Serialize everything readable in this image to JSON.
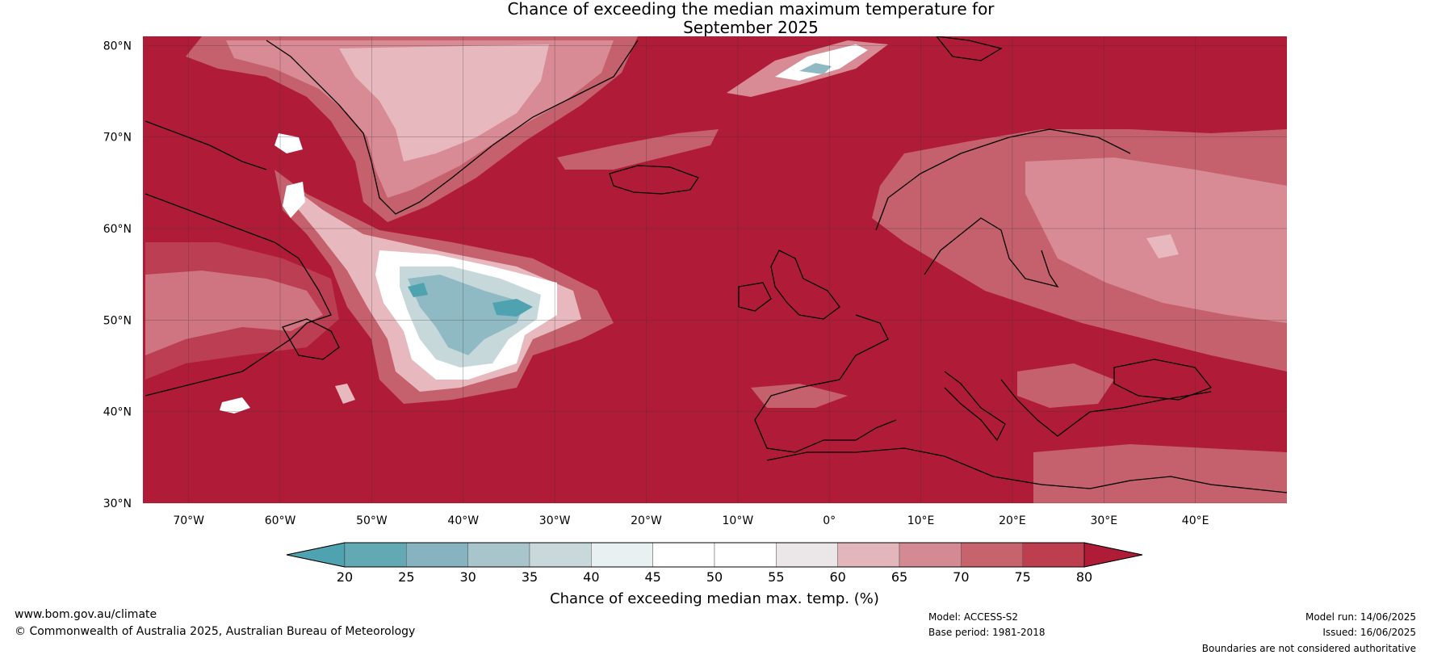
{
  "title": {
    "line1": "Chance of exceeding the median maximum temperature for",
    "line2": "September 2025"
  },
  "map": {
    "lat_labels": [
      "80°N",
      "70°N",
      "60°N",
      "50°N",
      "40°N",
      "30°N"
    ],
    "lat_values": [
      80,
      70,
      60,
      50,
      40,
      30
    ],
    "lon_labels": [
      "70°W",
      "60°W",
      "50°W",
      "40°W",
      "30°W",
      "20°W",
      "10°W",
      "0°",
      "10°E",
      "20°E",
      "30°E",
      "40°E"
    ],
    "lon_values": [
      -70,
      -60,
      -50,
      -40,
      -30,
      -20,
      -10,
      0,
      10,
      20,
      30,
      40
    ],
    "extent": {
      "lon_min": -75,
      "lon_max": 50,
      "lat_min": 30,
      "lat_max": 81
    },
    "base_color": "#b01c37",
    "regions_description_colors": {
      "above_70": "#c5606d",
      "60_70": "#d88b94",
      "55_60": "#e7b8bd",
      "45_55": "#ffffff",
      "35_45": "#c7d8db",
      "25_35": "#8fbac3",
      "below_25": "#4fa3b1"
    }
  },
  "colorbar": {
    "ticks": [
      "20",
      "25",
      "30",
      "35",
      "40",
      "45",
      "50",
      "55",
      "60",
      "65",
      "70",
      "75",
      "80"
    ],
    "colors": [
      "#62a9b4",
      "#86b3bf",
      "#a9c5cc",
      "#c9d8db",
      "#e9f0f1",
      "#ffffff",
      "#ffffff",
      "#ebe7e8",
      "#e2b6bb",
      "#d48a92",
      "#c6636c",
      "#bd3f4f"
    ],
    "low_extend_color": "#4fa3b1",
    "high_extend_color": "#b01c37",
    "label": "Chance of exceeding median max. temp. (%)"
  },
  "footer": {
    "website": "www.bom.gov.au/climate",
    "copyright": "© Commonwealth of Australia 2025, Australian Bureau of Meteorology",
    "model": "Model: ACCESS-S2",
    "base_period": "Base period: 1981-2018",
    "model_run": "Model run: 14/06/2025",
    "issued": "Issued: 16/06/2025",
    "disclaimer": "Boundaries are not considered authoritative"
  }
}
